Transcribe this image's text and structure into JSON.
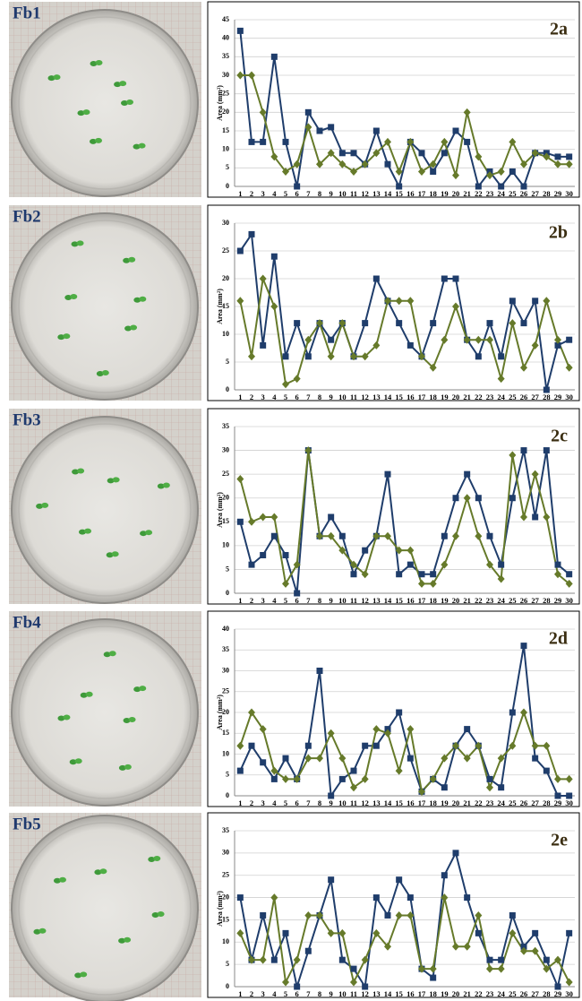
{
  "photos": [
    {
      "label": "Fb1"
    },
    {
      "label": "Fb2"
    },
    {
      "label": "Fb3"
    },
    {
      "label": "Fb4"
    },
    {
      "label": "Fb5"
    }
  ],
  "chart_data": [
    {
      "type": "line",
      "panel_label": "2a",
      "y_label": "Area (mm²)",
      "categories": [
        1,
        2,
        3,
        4,
        5,
        6,
        7,
        8,
        9,
        10,
        11,
        12,
        13,
        14,
        15,
        16,
        17,
        18,
        19,
        20,
        21,
        22,
        23,
        24,
        25,
        26,
        27,
        28,
        29,
        30
      ],
      "ylim": [
        0,
        45
      ],
      "yticks": [
        0,
        5,
        10,
        15,
        20,
        25,
        30,
        35,
        40,
        45
      ],
      "grid": true,
      "series": [
        {
          "color": "#1f3d6b",
          "marker": "square",
          "values": [
            42,
            12,
            12,
            35,
            12,
            0,
            20,
            15,
            16,
            9,
            9,
            6,
            15,
            6,
            0,
            12,
            9,
            4,
            9,
            15,
            12,
            0,
            4,
            0,
            4,
            0,
            9,
            9,
            8,
            8
          ]
        },
        {
          "color": "#667a2a",
          "marker": "diamond",
          "values": [
            30,
            30,
            20,
            8,
            4,
            6,
            16,
            6,
            9,
            6,
            4,
            6,
            9,
            12,
            4,
            12,
            4,
            6,
            12,
            3,
            20,
            8,
            3,
            4,
            12,
            6,
            9,
            8,
            6,
            6
          ]
        }
      ]
    },
    {
      "type": "line",
      "panel_label": "2b",
      "y_label": "Area (mm²)",
      "categories": [
        1,
        2,
        3,
        4,
        5,
        6,
        7,
        8,
        9,
        10,
        11,
        12,
        13,
        14,
        15,
        16,
        17,
        18,
        19,
        20,
        21,
        22,
        23,
        24,
        25,
        26,
        27,
        28,
        29,
        30
      ],
      "ylim": [
        0,
        30
      ],
      "yticks": [
        0,
        5,
        10,
        15,
        20,
        25,
        30
      ],
      "grid": true,
      "series": [
        {
          "color": "#1f3d6b",
          "marker": "square",
          "values": [
            25,
            28,
            8,
            24,
            6,
            12,
            6,
            12,
            9,
            12,
            6,
            12,
            20,
            16,
            12,
            8,
            6,
            12,
            20,
            20,
            9,
            6,
            12,
            6,
            16,
            12,
            16,
            0,
            8,
            9
          ]
        },
        {
          "color": "#667a2a",
          "marker": "diamond",
          "values": [
            16,
            6,
            20,
            15,
            1,
            2,
            9,
            12,
            6,
            12,
            6,
            6,
            8,
            16,
            16,
            16,
            6,
            4,
            9,
            15,
            9,
            9,
            9,
            2,
            12,
            4,
            8,
            16,
            9,
            4
          ]
        }
      ]
    },
    {
      "type": "line",
      "panel_label": "2c",
      "y_label": "Area (mm²)",
      "categories": [
        1,
        2,
        3,
        4,
        5,
        6,
        7,
        8,
        9,
        10,
        11,
        12,
        13,
        14,
        15,
        16,
        17,
        18,
        19,
        20,
        21,
        22,
        23,
        24,
        25,
        26,
        27,
        28,
        29,
        30
      ],
      "ylim": [
        0,
        35
      ],
      "yticks": [
        0,
        5,
        10,
        15,
        20,
        25,
        30,
        35
      ],
      "grid": true,
      "series": [
        {
          "color": "#1f3d6b",
          "marker": "square",
          "values": [
            15,
            6,
            8,
            12,
            8,
            0,
            30,
            12,
            16,
            12,
            4,
            9,
            12,
            25,
            4,
            6,
            4,
            4,
            12,
            20,
            25,
            20,
            12,
            6,
            20,
            30,
            16,
            30,
            6,
            4
          ]
        },
        {
          "color": "#667a2a",
          "marker": "diamond",
          "values": [
            24,
            15,
            16,
            16,
            2,
            6,
            30,
            12,
            12,
            9,
            6,
            4,
            12,
            12,
            9,
            9,
            2,
            2,
            6,
            12,
            20,
            12,
            6,
            3,
            29,
            16,
            25,
            16,
            4,
            2
          ]
        }
      ]
    },
    {
      "type": "line",
      "panel_label": "2d",
      "y_label": "Area (mm²)",
      "categories": [
        1,
        2,
        3,
        4,
        5,
        6,
        7,
        8,
        9,
        10,
        11,
        12,
        13,
        14,
        15,
        16,
        17,
        18,
        19,
        20,
        21,
        22,
        23,
        24,
        25,
        26,
        27,
        28,
        29,
        30
      ],
      "ylim": [
        0,
        40
      ],
      "yticks": [
        0,
        5,
        10,
        15,
        20,
        25,
        30,
        35,
        40
      ],
      "grid": true,
      "series": [
        {
          "color": "#1f3d6b",
          "marker": "square",
          "values": [
            6,
            12,
            8,
            4,
            9,
            4,
            12,
            30,
            0,
            4,
            6,
            12,
            12,
            16,
            20,
            9,
            1,
            4,
            2,
            12,
            16,
            12,
            4,
            2,
            20,
            36,
            9,
            6,
            0,
            0
          ]
        },
        {
          "color": "#667a2a",
          "marker": "diamond",
          "values": [
            12,
            20,
            16,
            6,
            4,
            4,
            9,
            9,
            15,
            9,
            2,
            4,
            16,
            15,
            6,
            16,
            1,
            4,
            9,
            12,
            9,
            12,
            2,
            9,
            12,
            20,
            12,
            12,
            4,
            4
          ]
        }
      ]
    },
    {
      "type": "line",
      "panel_label": "2e",
      "y_label": "Area (mm²)",
      "categories": [
        1,
        2,
        3,
        4,
        5,
        6,
        7,
        8,
        9,
        10,
        11,
        12,
        13,
        14,
        15,
        16,
        17,
        18,
        19,
        20,
        21,
        22,
        23,
        24,
        25,
        26,
        27,
        28,
        29,
        30
      ],
      "ylim": [
        0,
        35
      ],
      "yticks": [
        0,
        5,
        10,
        15,
        20,
        25,
        30,
        35
      ],
      "grid": true,
      "series": [
        {
          "color": "#1f3d6b",
          "marker": "square",
          "values": [
            20,
            6,
            16,
            6,
            12,
            0,
            8,
            16,
            24,
            6,
            4,
            0,
            20,
            16,
            24,
            20,
            4,
            2,
            25,
            30,
            20,
            12,
            6,
            6,
            16,
            9,
            12,
            6,
            0,
            12
          ]
        },
        {
          "color": "#667a2a",
          "marker": "diamond",
          "values": [
            12,
            6,
            6,
            20,
            1,
            6,
            16,
            16,
            12,
            12,
            1,
            6,
            12,
            9,
            16,
            16,
            4,
            4,
            20,
            9,
            9,
            16,
            4,
            4,
            12,
            8,
            8,
            4,
            6,
            1
          ]
        }
      ]
    }
  ]
}
